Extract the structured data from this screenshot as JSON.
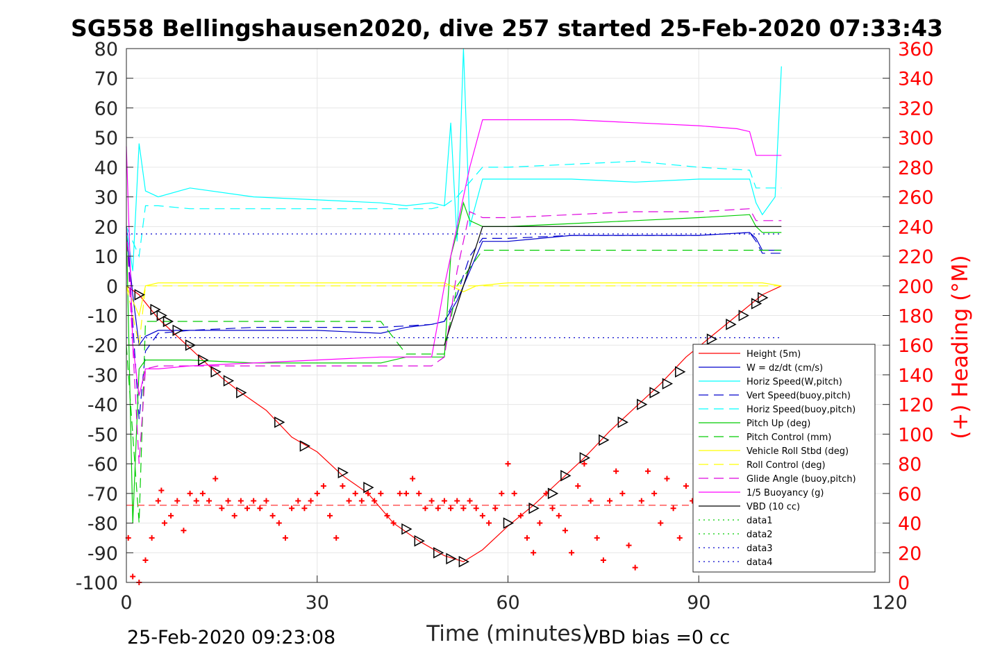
{
  "chart_data": {
    "type": "line",
    "title": "SG558 Bellingshausen2020, dive 257 started 25-Feb-2020 07:33:43",
    "xlabel": "Time (minutes)",
    "ylabel": "",
    "y2label": "(+) Heading (°M)",
    "xlim": [
      0,
      120
    ],
    "ylim": [
      -100,
      80
    ],
    "y2lim": [
      0,
      360
    ],
    "xticks": [
      "0",
      "30",
      "60",
      "90",
      "120"
    ],
    "yticks": [
      "80",
      "70",
      "60",
      "50",
      "40",
      "30",
      "20",
      "10",
      "0",
      "-10",
      "-20",
      "-30",
      "-40",
      "-50",
      "-60",
      "-70",
      "-80",
      "-90",
      "-100"
    ],
    "y2ticks": [
      "360",
      "340",
      "320",
      "300",
      "280",
      "260",
      "240",
      "220",
      "200",
      "180",
      "160",
      "140",
      "120",
      "100",
      "80",
      "60",
      "40",
      "20",
      "0"
    ],
    "grid": true,
    "legend_position": "bottom-right",
    "footer_left": "25-Feb-2020 09:23:08",
    "footer_right": "VBD bias =0 cc",
    "series": [
      {
        "name": "Height (5m)",
        "color": "#ff0000",
        "style": "solid",
        "x": [
          0,
          2,
          5,
          8,
          12,
          15,
          18,
          22,
          26,
          30,
          34,
          38,
          42,
          46,
          50,
          53,
          56,
          60,
          64,
          68,
          72,
          76,
          80,
          84,
          88,
          92,
          96,
          100,
          103
        ],
        "y": [
          0,
          -3,
          -11,
          -17,
          -25,
          -31,
          -36,
          -42,
          -51,
          -56,
          -64,
          -70,
          -80,
          -86,
          -91,
          -93,
          -89,
          -81,
          -74,
          -66,
          -58,
          -49,
          -41,
          -33,
          -24,
          -17,
          -10,
          -3,
          0
        ]
      },
      {
        "name": "W = dz/dt (cm/s)",
        "color": "#0000cc",
        "style": "solid",
        "x": [
          0,
          1,
          2,
          3,
          5,
          10,
          20,
          30,
          40,
          44,
          48,
          50,
          52,
          54,
          56,
          60,
          70,
          80,
          90,
          98,
          99,
          100,
          103
        ],
        "y": [
          18,
          -3,
          -20,
          -17,
          -15,
          -15,
          -15,
          -15,
          -16,
          -14,
          -13,
          -12,
          -5,
          5,
          15,
          15,
          17,
          17,
          17,
          18,
          16,
          12,
          12
        ]
      },
      {
        "name": "Horiz Speed(W,pitch)",
        "color": "#00ffff",
        "style": "solid",
        "x": [
          0,
          1,
          2,
          3,
          5,
          10,
          20,
          30,
          40,
          44,
          48,
          50,
          51,
          52,
          53,
          54,
          56,
          60,
          70,
          80,
          90,
          98,
          99,
          100,
          102,
          103
        ],
        "y": [
          20,
          5,
          48,
          32,
          30,
          33,
          30,
          29,
          28,
          27,
          28,
          27,
          55,
          15,
          80,
          20,
          36,
          36,
          36,
          35,
          36,
          36,
          28,
          24,
          30,
          74
        ]
      },
      {
        "name": "Vert Speed(buoy,pitch)",
        "color": "#0000cc",
        "style": "dashed",
        "x": [
          0,
          2,
          3,
          5,
          10,
          20,
          30,
          40,
          48,
          50,
          52,
          54,
          56,
          60,
          70,
          80,
          90,
          98,
          99,
          100,
          103
        ],
        "y": [
          20,
          -45,
          -22,
          -16,
          -15,
          -14,
          -14,
          -14,
          -13,
          -12,
          -3,
          10,
          16,
          16,
          17,
          17,
          17,
          18,
          15,
          11,
          11
        ]
      },
      {
        "name": "Horiz Speed(buoy,pitch)",
        "color": "#00ffff",
        "style": "dashed",
        "x": [
          0,
          2,
          3,
          5,
          10,
          20,
          30,
          40,
          48,
          50,
          52,
          54,
          56,
          60,
          70,
          80,
          90,
          98,
          99,
          100,
          103
        ],
        "y": [
          20,
          10,
          27,
          27,
          26,
          26,
          26,
          26,
          26,
          27,
          30,
          35,
          40,
          40,
          41,
          42,
          40,
          39,
          33,
          33,
          33
        ]
      },
      {
        "name": "Pitch Up (deg)",
        "color": "#00cc00",
        "style": "solid",
        "x": [
          0,
          1,
          2,
          3,
          5,
          10,
          20,
          30,
          40,
          44,
          48,
          50,
          51,
          52,
          53,
          54,
          56,
          60,
          70,
          80,
          90,
          98,
          99,
          100,
          103
        ],
        "y": [
          20,
          -80,
          -28,
          -25,
          -25,
          -25,
          -26,
          -26,
          -26,
          -24,
          -24,
          -24,
          10,
          18,
          28,
          22,
          20,
          20,
          21,
          22,
          23,
          24,
          20,
          18,
          18
        ]
      },
      {
        "name": "Pitch Control (mm)",
        "color": "#00cc00",
        "style": "dashed",
        "x": [
          0,
          2,
          3,
          5,
          10,
          20,
          30,
          40,
          44,
          48,
          50,
          52,
          54,
          56,
          60,
          70,
          80,
          90,
          98,
          103
        ],
        "y": [
          -20,
          -80,
          -12,
          -12,
          -12,
          -12,
          -12,
          -12,
          -23,
          -23,
          -23,
          0,
          6,
          12,
          12,
          12,
          12,
          12,
          12,
          12
        ]
      },
      {
        "name": "Vehicle Roll Stbd (deg)",
        "color": "#ffff00",
        "style": "solid",
        "x": [
          0,
          2,
          3,
          5,
          10,
          20,
          30,
          40,
          50,
          53,
          55,
          60,
          70,
          80,
          90,
          100,
          103
        ],
        "y": [
          0,
          -10,
          0,
          1,
          1,
          1,
          1,
          1,
          1,
          -2,
          0,
          1,
          1,
          1,
          1,
          1,
          0
        ]
      },
      {
        "name": "Roll Control (deg)",
        "color": "#ffff00",
        "style": "dashed",
        "x": [
          0,
          2,
          3,
          5,
          10,
          20,
          30,
          40,
          50,
          53,
          55,
          60,
          70,
          80,
          90,
          100,
          103
        ],
        "y": [
          0,
          -20,
          0,
          0,
          0,
          0,
          0,
          0,
          0,
          0,
          0,
          0,
          0,
          0,
          0,
          0,
          0
        ]
      },
      {
        "name": "Glide Angle (buoy,pitch)",
        "color": "#dd00dd",
        "style": "dashed",
        "x": [
          0,
          2,
          3,
          5,
          10,
          20,
          30,
          40,
          48,
          50,
          52,
          54,
          56,
          60,
          70,
          80,
          90,
          98,
          99,
          100,
          103
        ],
        "y": [
          20,
          -60,
          -28,
          -27,
          -27,
          -27,
          -27,
          -27,
          -27,
          -24,
          5,
          25,
          23,
          23,
          24,
          25,
          25,
          26,
          22,
          22,
          22
        ]
      },
      {
        "name": "1/5 Buoyancy (g)",
        "color": "#ff00ff",
        "style": "solid",
        "x": [
          0,
          1,
          2,
          3,
          5,
          10,
          20,
          30,
          40,
          48,
          50,
          52,
          54,
          56,
          60,
          70,
          80,
          90,
          96,
          98,
          99,
          103
        ],
        "y": [
          47,
          -20,
          -37,
          -28,
          -28,
          -27,
          -26,
          -25,
          -24,
          -24,
          0,
          20,
          40,
          56,
          56,
          56,
          55,
          54,
          53,
          52,
          44,
          44
        ]
      },
      {
        "name": "VBD (10 cc)",
        "color": "#000000",
        "style": "solid",
        "x": [
          0,
          2,
          3,
          10,
          20,
          30,
          40,
          50,
          56,
          60,
          70,
          80,
          90,
          100,
          103
        ],
        "y": [
          -20,
          -20,
          -20,
          -20,
          -20,
          -20,
          -20,
          -20,
          20,
          20,
          20,
          20,
          20,
          20,
          20
        ]
      },
      {
        "name": "data1",
        "color": "#00cc00",
        "style": "dotted",
        "x": [],
        "y": []
      },
      {
        "name": "data2",
        "color": "#00cc00",
        "style": "dotted",
        "x": [],
        "y": []
      },
      {
        "name": "data3",
        "color": "#0000cc",
        "style": "dotted",
        "x": [
          0,
          103
        ],
        "y": [
          17.5,
          17.5
        ]
      },
      {
        "name": "data4",
        "color": "#0000cc",
        "style": "dotted",
        "x": [
          0,
          103
        ],
        "y": [
          -17.5,
          -17.5
        ]
      }
    ],
    "heading": {
      "color": "#ff0000",
      "marker": "+",
      "axis": "right",
      "x": [
        0.3,
        1,
        2,
        3,
        4,
        5,
        5.5,
        6,
        7,
        8,
        9,
        10,
        11,
        12,
        13,
        14,
        15,
        16,
        17,
        18,
        19,
        20,
        21,
        22,
        23,
        24,
        25,
        26,
        27,
        28,
        29,
        30,
        31,
        32,
        33,
        34,
        35,
        36,
        37,
        38,
        39,
        40,
        41,
        42,
        43,
        44,
        45,
        46,
        47,
        48,
        49,
        50,
        51,
        52,
        53,
        54,
        55,
        56,
        57,
        58,
        59,
        60,
        61,
        62,
        63,
        64,
        65,
        66,
        67,
        68,
        69,
        70,
        71,
        72,
        73,
        74,
        75,
        76,
        77,
        78,
        79,
        80,
        81,
        82,
        83,
        84,
        85,
        86,
        87,
        88,
        89,
        90
      ],
      "y": [
        30,
        4,
        0,
        15,
        30,
        55,
        62,
        40,
        45,
        55,
        35,
        60,
        55,
        60,
        55,
        70,
        50,
        55,
        45,
        55,
        50,
        55,
        50,
        55,
        45,
        40,
        30,
        50,
        55,
        50,
        55,
        60,
        65,
        45,
        30,
        65,
        55,
        60,
        55,
        60,
        55,
        60,
        45,
        40,
        60,
        60,
        70,
        60,
        50,
        55,
        50,
        55,
        50,
        55,
        50,
        55,
        50,
        45,
        40,
        50,
        60,
        80,
        60,
        45,
        30,
        20,
        40,
        60,
        50,
        45,
        35,
        20,
        65,
        80,
        55,
        30,
        15,
        55,
        75,
        60,
        25,
        10,
        55,
        75,
        60,
        40,
        70,
        50,
        30,
        65,
        55,
        60
      ]
    },
    "heading_mean": {
      "value": 52
    },
    "markers": {
      "shape": "triangle-open",
      "x": [
        2,
        4.5,
        5.5,
        6.5,
        8,
        10,
        12,
        14,
        16,
        18,
        24,
        28,
        34,
        38,
        44,
        46,
        49,
        51,
        53,
        60,
        64,
        67,
        69,
        72,
        75,
        78,
        81,
        83,
        85,
        87,
        92,
        95,
        97,
        99,
        100
      ],
      "y": [
        -3,
        -8,
        -10,
        -12,
        -15,
        -20,
        -25,
        -29,
        -32,
        -36,
        -46,
        -54,
        -63,
        -68,
        -82,
        -86,
        -90,
        -92,
        -93,
        -80,
        -75,
        -70,
        -64,
        -58,
        -52,
        -46,
        -40,
        -36,
        -33,
        -29,
        -18,
        -13,
        -10,
        -6,
        -4
      ]
    }
  }
}
